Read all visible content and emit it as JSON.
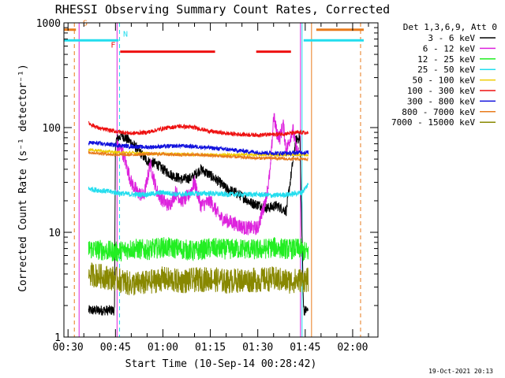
{
  "chart_data": {
    "type": "line",
    "title": "RHESSI Observing Summary Count Rates, Corrected",
    "xlabel": "Start Time (10-Sep-14 00:28:42)",
    "ylabel": "Corrected Count Rate (s⁻¹ detector⁻¹)",
    "y_scale": "log",
    "ylim": [
      1,
      1000
    ],
    "xlim_minutes": [
      28.7,
      128.0
    ],
    "x_tick_labels": [
      "00:30",
      "00:45",
      "01:00",
      "01:15",
      "01:30",
      "01:45",
      "02:00"
    ],
    "x_tick_minutes": [
      30,
      45,
      60,
      75,
      90,
      105,
      120
    ],
    "y_tick_labels": [
      "1",
      "10",
      "100",
      "1000"
    ],
    "y_tick_values": [
      1,
      10,
      100,
      1000
    ],
    "legend_title": "Det 1,3,6,9, Att 0",
    "legend_position": "right, outside plot",
    "timestamp": "19-Oct-2021 20:13",
    "flags": [
      {
        "label": "S",
        "color": "#e87b1c",
        "bars": [
          [
            28.7,
            32.5
          ],
          [
            108.5,
            123.5
          ]
        ],
        "level": 860
      },
      {
        "label": "N",
        "color": "#22ddee",
        "bars": [
          [
            28.7,
            46.0
          ],
          [
            104.5,
            123.5
          ]
        ],
        "level": 680
      },
      {
        "label": "F",
        "color": "#ee1111",
        "bars": [
          [
            46.5,
            76.5
          ],
          [
            89.5,
            100.5
          ]
        ],
        "level": 530
      }
    ],
    "vertical_markers": [
      {
        "minute": 32.0,
        "color": "#e87b1c",
        "style": "dashed"
      },
      {
        "minute": 33.5,
        "color": "#dd22dd",
        "style": "solid"
      },
      {
        "minute": 46.3,
        "color": "#22ddee",
        "style": "dashed"
      },
      {
        "minute": 45.5,
        "color": "#dd22dd",
        "style": "solid"
      },
      {
        "minute": 104.0,
        "color": "#22ddee",
        "style": "solid"
      },
      {
        "minute": 107.0,
        "color": "#e87b1c",
        "style": "solid"
      },
      {
        "minute": 122.5,
        "color": "#e87b1c",
        "style": "dashed"
      },
      {
        "minute": 103.5,
        "color": "#dd22dd",
        "style": "solid"
      }
    ],
    "series": [
      {
        "name": "3 - 6 keV",
        "color": "#000000",
        "noise": 0.05,
        "x": [
          36.5,
          44.7,
          45,
          47,
          50,
          52,
          55,
          58,
          60,
          63,
          66,
          69,
          72,
          75,
          78,
          80,
          83,
          86,
          88,
          91,
          93,
          96,
          99,
          102,
          103.3,
          104.5,
          106
        ],
        "y": [
          1.8,
          1.8,
          75,
          85,
          72,
          62,
          48,
          45,
          40,
          35,
          32,
          33,
          40,
          35,
          30,
          26,
          24,
          21,
          19,
          18,
          17,
          18,
          16,
          75,
          82,
          1.8,
          1.8
        ]
      },
      {
        "name": "6 - 12 keV",
        "color": "#dd22dd",
        "noise": 0.07,
        "x": [
          45.5,
          47,
          50,
          52,
          54,
          56,
          58,
          60,
          62,
          64,
          66,
          68,
          70,
          72,
          75,
          78,
          80,
          83,
          86,
          90,
          92,
          93,
          94,
          95,
          96,
          97,
          98,
          99,
          100,
          101,
          102,
          103
        ],
        "y": [
          65,
          62,
          30,
          24,
          22,
          45,
          25,
          20,
          18,
          24,
          20,
          22,
          30,
          18,
          20,
          14,
          13,
          12,
          11,
          11,
          18,
          25,
          40,
          130,
          90,
          80,
          110,
          60,
          75,
          100,
          65,
          55
        ]
      },
      {
        "name": "12 - 25 keV",
        "color": "#22ee22",
        "noise": 0.1,
        "x": [
          36.5,
          45.5,
          50,
          55,
          60,
          65,
          70,
          75,
          80,
          85,
          90,
          95,
          100,
          103.5,
          104.5,
          106
        ],
        "y": [
          7,
          6.5,
          7.0,
          6.8,
          7.2,
          7.0,
          6.6,
          7.1,
          6.9,
          7.0,
          6.8,
          7.2,
          6.9,
          7.0,
          6.5,
          6.5
        ]
      },
      {
        "name": "25 - 50 keV",
        "color": "#22ddee",
        "noise": 0.025,
        "x": [
          36.5,
          45,
          50,
          55,
          60,
          65,
          70,
          75,
          80,
          85,
          90,
          95,
          100,
          104,
          106
        ],
        "y": [
          26,
          24,
          23,
          23,
          24,
          23,
          23.5,
          23.5,
          23,
          23,
          23,
          22.5,
          23,
          24,
          29
        ]
      },
      {
        "name": "50 - 100 keV",
        "color": "#eecc00",
        "noise": 0.015,
        "x": [
          36.5,
          45,
          60,
          75,
          90,
          104,
          106
        ],
        "y": [
          62,
          58,
          56,
          55,
          55,
          55,
          55
        ]
      },
      {
        "name": "100 - 300 keV",
        "color": "#ee1111",
        "noise": 0.02,
        "x": [
          36.5,
          40,
          45,
          50,
          55,
          60,
          65,
          70,
          75,
          80,
          85,
          90,
          95,
          100,
          104,
          106
        ],
        "y": [
          110,
          98,
          92,
          88,
          90,
          98,
          103,
          100,
          92,
          88,
          86,
          85,
          86,
          88,
          90,
          88
        ]
      },
      {
        "name": "300 - 800 keV",
        "color": "#1111dd",
        "noise": 0.02,
        "x": [
          36.5,
          45,
          50,
          55,
          60,
          65,
          70,
          75,
          80,
          85,
          90,
          95,
          100,
          104,
          106
        ],
        "y": [
          72,
          68,
          66,
          65,
          66,
          67,
          66,
          64,
          62,
          60,
          58,
          57,
          57,
          58,
          58
        ]
      },
      {
        "name": "800 - 7000 keV",
        "color": "#e87b1c",
        "noise": 0.015,
        "x": [
          36.5,
          45,
          50,
          55,
          60,
          65,
          70,
          75,
          80,
          85,
          90,
          95,
          100,
          104,
          106
        ],
        "y": [
          58,
          55,
          55,
          56,
          56,
          55,
          55,
          54,
          53,
          52,
          51,
          51,
          50,
          50,
          50
        ]
      },
      {
        "name": "7000 - 15000 keV",
        "color": "#888800",
        "noise": 0.12,
        "x": [
          36.5,
          45,
          50,
          55,
          60,
          65,
          70,
          75,
          80,
          85,
          90,
          95,
          100,
          103.5,
          104.5,
          106
        ],
        "y": [
          4.0,
          3.6,
          3.2,
          3.3,
          3.6,
          3.4,
          3.5,
          3.6,
          3.4,
          3.5,
          3.5,
          3.6,
          3.4,
          3.5,
          3.5,
          3.5
        ]
      }
    ]
  }
}
